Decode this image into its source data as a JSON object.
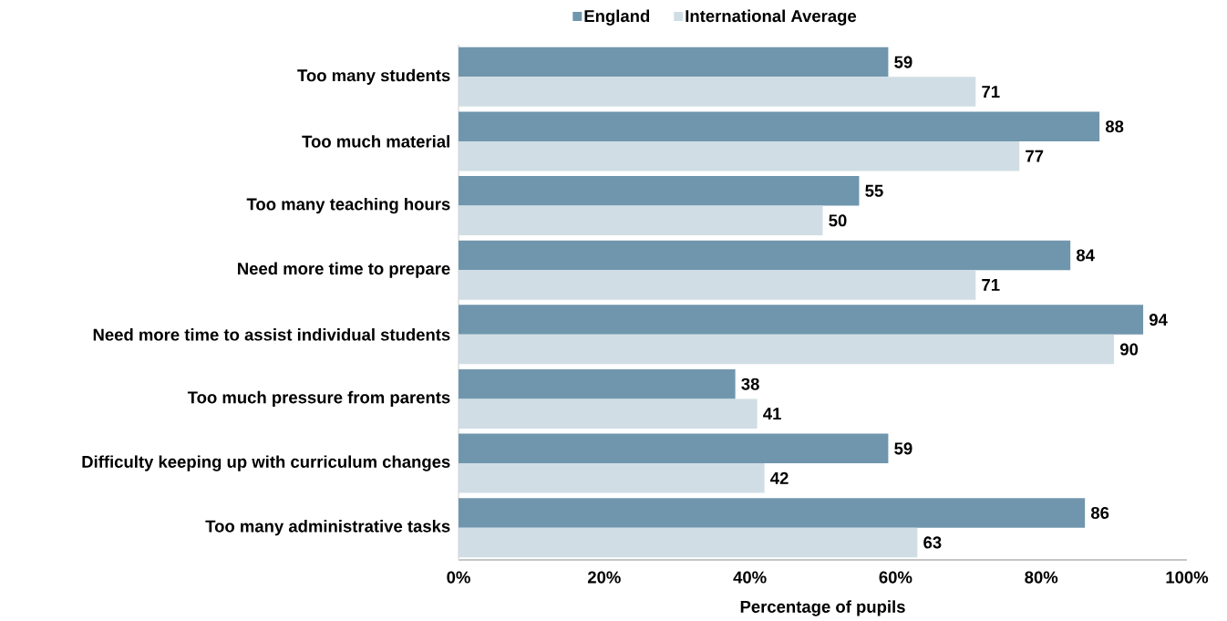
{
  "chart_data": {
    "type": "bar",
    "orientation": "horizontal",
    "xlabel": "Percentage of pupils",
    "categories": [
      "Too many students",
      "Too much material",
      "Too many teaching hours",
      "Need more time to prepare",
      "Need more time to assist individual students",
      "Too much pressure from parents",
      "Difficulty keeping up with curriculum changes",
      "Too many administrative tasks"
    ],
    "series": [
      {
        "name": "England",
        "color": "#7096ad",
        "values": [
          59,
          88,
          55,
          84,
          94,
          38,
          59,
          86
        ]
      },
      {
        "name": "International Average",
        "color": "#d0dde5",
        "values": [
          71,
          77,
          50,
          71,
          90,
          41,
          42,
          63
        ]
      }
    ],
    "xlim": [
      0,
      100
    ],
    "xticks": [
      {
        "value": 0,
        "label": "0%"
      },
      {
        "value": 20,
        "label": "20%"
      },
      {
        "value": 40,
        "label": "40%"
      },
      {
        "value": 60,
        "label": "60%"
      },
      {
        "value": 80,
        "label": "80%"
      },
      {
        "value": 100,
        "label": "100%"
      }
    ],
    "data_labels": true,
    "legend": "top"
  }
}
